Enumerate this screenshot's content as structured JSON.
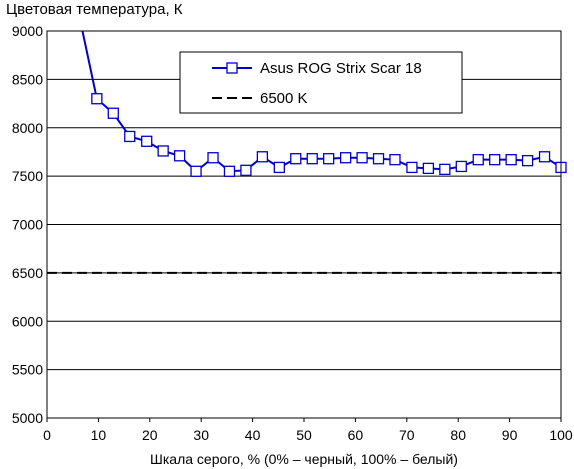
{
  "chart_data": {
    "type": "line",
    "title": "Цветовая температура, К",
    "xlabel": "Шкала серого, % (0% – черный, 100% – белый)",
    "ylabel": "",
    "xlim": [
      0,
      100
    ],
    "ylim": [
      5000,
      9000
    ],
    "xticks": [
      "0",
      "10",
      "20",
      "30",
      "40",
      "50",
      "60",
      "70",
      "80",
      "90",
      "100"
    ],
    "yticks": [
      "5000",
      "5500",
      "6000",
      "6500",
      "7000",
      "7500",
      "8000",
      "8500",
      "9000"
    ],
    "grid": "horizontal",
    "legend_position": "top-center",
    "series": [
      {
        "name": "Asus ROG Strix Scar 18",
        "color": "#0000cc",
        "marker": "square-open",
        "x": [
          6.5,
          9.7,
          12.9,
          16.1,
          19.4,
          22.6,
          25.8,
          29.0,
          32.3,
          35.5,
          38.7,
          41.9,
          45.2,
          48.4,
          51.6,
          54.8,
          58.1,
          61.3,
          64.5,
          67.7,
          71.0,
          74.2,
          77.4,
          80.6,
          83.9,
          87.1,
          90.3,
          93.5,
          96.8,
          100
        ],
        "y": [
          9100,
          8300,
          8150,
          7910,
          7860,
          7760,
          7710,
          7550,
          7690,
          7550,
          7560,
          7700,
          7590,
          7680,
          7680,
          7680,
          7690,
          7690,
          7680,
          7670,
          7590,
          7580,
          7570,
          7600,
          7670,
          7670,
          7670,
          7660,
          7700,
          7590
        ],
        "marker_from_index": 1
      },
      {
        "name": "6500 K",
        "color": "#000000",
        "dash": "dashed",
        "x": [
          0,
          100
        ],
        "y": [
          6500,
          6500
        ]
      }
    ]
  }
}
